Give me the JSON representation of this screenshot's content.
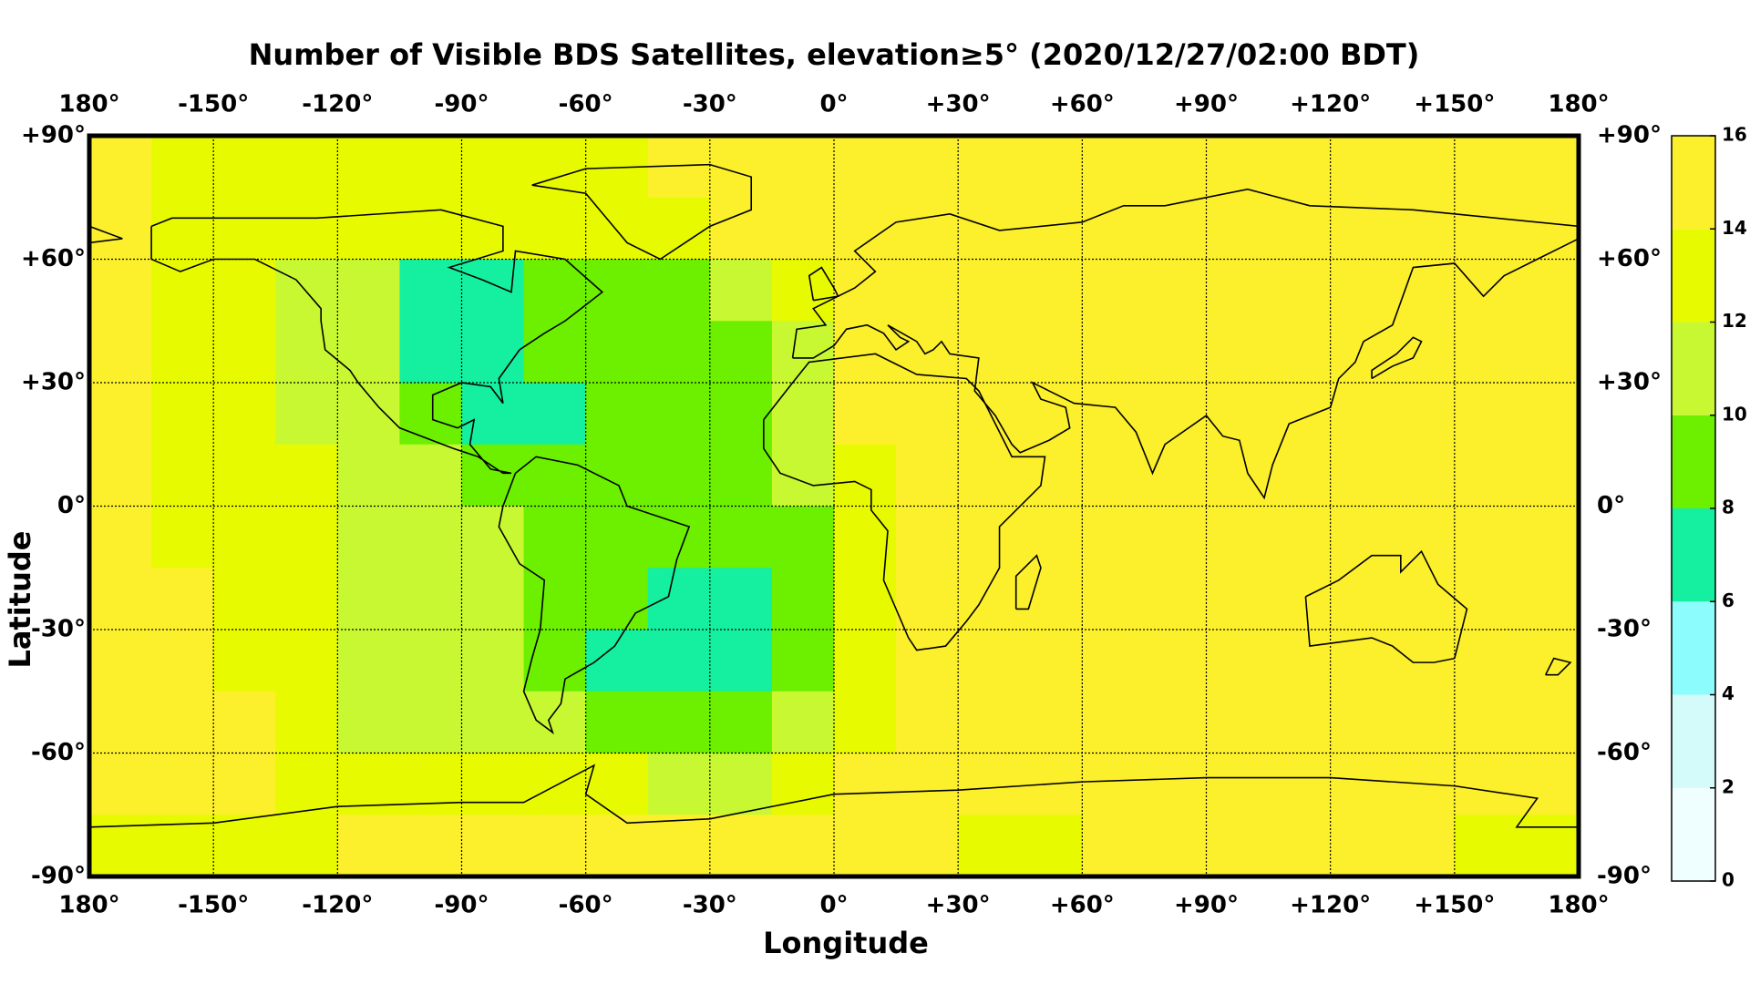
{
  "chart_data": {
    "type": "heatmap",
    "title": "Number of Visible BDS Satellites, elevation≥5° (2020/12/27/02:00 BDT)",
    "xlabel": "Longitude",
    "ylabel": "Latitude",
    "xlim": [
      -180,
      180
    ],
    "ylim": [
      -90,
      90
    ],
    "xticks": [
      {
        "value": -180,
        "label": "180°"
      },
      {
        "value": -150,
        "label": "-150°"
      },
      {
        "value": -120,
        "label": "-120°"
      },
      {
        "value": -90,
        "label": "-90°"
      },
      {
        "value": -60,
        "label": "-60°"
      },
      {
        "value": -30,
        "label": "-30°"
      },
      {
        "value": 0,
        "label": "0°"
      },
      {
        "value": 30,
        "label": "+30°"
      },
      {
        "value": 60,
        "label": "+60°"
      },
      {
        "value": 90,
        "label": "+90°"
      },
      {
        "value": 120,
        "label": "+120°"
      },
      {
        "value": 150,
        "label": "+150°"
      },
      {
        "value": 180,
        "label": "180°"
      }
    ],
    "yticks": [
      {
        "value": -90,
        "label": "-90°"
      },
      {
        "value": -60,
        "label": "-60°"
      },
      {
        "value": -30,
        "label": "-30°"
      },
      {
        "value": 0,
        "label": "0°"
      },
      {
        "value": 30,
        "label": "+30°"
      },
      {
        "value": 60,
        "label": "+60°"
      },
      {
        "value": 90,
        "label": "+90°"
      }
    ],
    "grid": true,
    "x": [
      -172.5,
      -157.5,
      -142.5,
      -127.5,
      -112.5,
      -97.5,
      -82.5,
      -67.5,
      -52.5,
      -37.5,
      -22.5,
      -7.5,
      7.5,
      22.5,
      37.5,
      52.5,
      67.5,
      82.5,
      97.5,
      112.5,
      127.5,
      142.5,
      157.5,
      172.5
    ],
    "y": [
      82.5,
      67.5,
      52.5,
      37.5,
      22.5,
      7.5,
      -7.5,
      -22.5,
      -37.5,
      -52.5,
      -67.5,
      -82.5
    ],
    "z": [
      [
        15,
        13,
        13,
        13,
        13,
        13,
        13,
        13,
        13,
        15,
        15,
        15,
        15,
        15,
        15,
        15,
        15,
        15,
        15,
        15,
        15,
        15,
        15,
        15
      ],
      [
        15,
        13,
        13,
        13,
        13,
        13,
        13,
        13,
        13,
        13,
        15,
        15,
        15,
        15,
        15,
        15,
        15,
        15,
        15,
        15,
        15,
        15,
        15,
        15
      ],
      [
        15,
        13,
        13,
        11,
        11,
        7,
        7,
        9,
        9,
        9,
        11,
        13,
        15,
        15,
        15,
        15,
        15,
        15,
        15,
        15,
        15,
        15,
        15,
        15
      ],
      [
        15,
        13,
        13,
        11,
        11,
        7,
        7,
        9,
        9,
        9,
        9,
        11,
        15,
        15,
        15,
        15,
        15,
        15,
        15,
        15,
        15,
        15,
        15,
        15
      ],
      [
        15,
        13,
        13,
        11,
        11,
        9,
        7,
        7,
        9,
        9,
        9,
        11,
        15,
        15,
        15,
        15,
        15,
        15,
        15,
        15,
        15,
        15,
        15,
        15
      ],
      [
        15,
        13,
        13,
        13,
        11,
        11,
        9,
        9,
        9,
        9,
        9,
        11,
        13,
        15,
        15,
        15,
        15,
        15,
        15,
        15,
        15,
        15,
        15,
        15
      ],
      [
        15,
        13,
        13,
        13,
        11,
        11,
        11,
        9,
        9,
        9,
        9,
        9,
        13,
        15,
        15,
        15,
        15,
        15,
        15,
        15,
        15,
        15,
        15,
        15
      ],
      [
        15,
        15,
        13,
        13,
        11,
        11,
        11,
        9,
        9,
        7,
        7,
        9,
        13,
        15,
        15,
        15,
        15,
        15,
        15,
        15,
        15,
        15,
        15,
        15
      ],
      [
        15,
        15,
        13,
        13,
        11,
        11,
        11,
        9,
        7,
        7,
        7,
        9,
        13,
        15,
        15,
        15,
        15,
        15,
        15,
        15,
        15,
        15,
        15,
        15
      ],
      [
        15,
        15,
        15,
        13,
        11,
        11,
        11,
        11,
        9,
        9,
        9,
        11,
        13,
        15,
        15,
        15,
        15,
        15,
        15,
        15,
        15,
        15,
        15,
        15
      ],
      [
        15,
        15,
        15,
        13,
        13,
        13,
        13,
        13,
        13,
        11,
        11,
        13,
        15,
        15,
        15,
        15,
        15,
        15,
        15,
        15,
        15,
        15,
        15,
        15
      ],
      [
        13,
        13,
        13,
        13,
        15,
        15,
        15,
        15,
        15,
        15,
        15,
        15,
        15,
        15,
        13,
        13,
        15,
        15,
        15,
        15,
        15,
        15,
        13,
        13
      ]
    ],
    "colorbar": {
      "levels": [
        0,
        2,
        4,
        6,
        8,
        10,
        12,
        14,
        16
      ],
      "colors": [
        "#effefe",
        "#d4fafa",
        "#8cfcfc",
        "#14f0a0",
        "#6cf000",
        "#c8f832",
        "#e8fa00",
        "#fcef2c"
      ]
    }
  }
}
